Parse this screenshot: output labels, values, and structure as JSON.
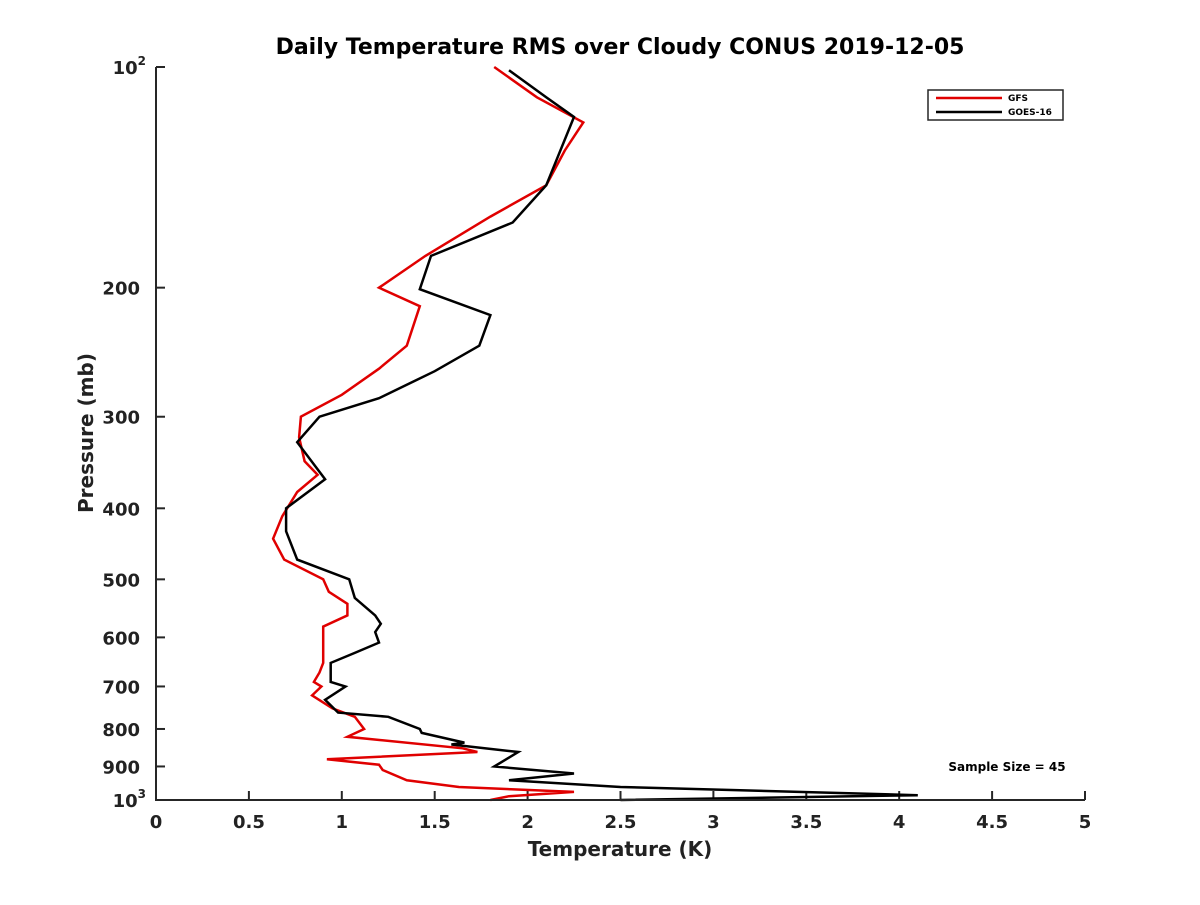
{
  "chart_data": {
    "type": "line",
    "title": "Daily Temperature RMS over Cloudy CONUS 2019-12-05",
    "xlabel": "Temperature (K)",
    "ylabel": "Pressure (mb)",
    "xlim": [
      0,
      5
    ],
    "ylim": [
      100,
      1000
    ],
    "y_scale": "log",
    "y_reversed": true,
    "grid": false,
    "legend_position": "top-right",
    "x_ticks": [
      "0",
      "0.5",
      "1",
      "1.5",
      "2",
      "2.5",
      "3",
      "3.5",
      "4",
      "4.5",
      "5"
    ],
    "x_tick_values": [
      0,
      0.5,
      1,
      1.5,
      2,
      2.5,
      3,
      3.5,
      4,
      4.5,
      5
    ],
    "y_ticks": [
      {
        "value": 100,
        "base": "10",
        "exp": "2"
      },
      {
        "value": 200,
        "label": "200"
      },
      {
        "value": 300,
        "label": "300"
      },
      {
        "value": 400,
        "label": "400"
      },
      {
        "value": 500,
        "label": "500"
      },
      {
        "value": 600,
        "label": "600"
      },
      {
        "value": 700,
        "label": "700"
      },
      {
        "value": 800,
        "label": "800"
      },
      {
        "value": 900,
        "label": "900"
      },
      {
        "value": 1000,
        "base": "10",
        "exp": "3"
      }
    ],
    "annotation": "Sample Size = 45",
    "series": [
      {
        "name": "GFS",
        "color": "#e00000",
        "points": [
          [
            1.82,
            100
          ],
          [
            2.05,
            110
          ],
          [
            2.3,
            119
          ],
          [
            2.2,
            130
          ],
          [
            2.1,
            145
          ],
          [
            1.8,
            160
          ],
          [
            1.45,
            181
          ],
          [
            1.2,
            200
          ],
          [
            1.42,
            212
          ],
          [
            1.35,
            240
          ],
          [
            1.2,
            258
          ],
          [
            1.0,
            280
          ],
          [
            0.78,
            300
          ],
          [
            0.77,
            320
          ],
          [
            0.8,
            345
          ],
          [
            0.87,
            360
          ],
          [
            0.76,
            380
          ],
          [
            0.68,
            410
          ],
          [
            0.63,
            440
          ],
          [
            0.69,
            470
          ],
          [
            0.9,
            500
          ],
          [
            0.93,
            520
          ],
          [
            1.03,
            540
          ],
          [
            1.03,
            560
          ],
          [
            0.9,
            580
          ],
          [
            0.9,
            620
          ],
          [
            0.9,
            650
          ],
          [
            0.88,
            670
          ],
          [
            0.85,
            690
          ],
          [
            0.89,
            700
          ],
          [
            0.84,
            720
          ],
          [
            0.95,
            750
          ],
          [
            1.07,
            770
          ],
          [
            1.12,
            800
          ],
          [
            1.03,
            820
          ],
          [
            1.65,
            850
          ],
          [
            1.73,
            860
          ],
          [
            0.92,
            880
          ],
          [
            1.2,
            895
          ],
          [
            1.22,
            910
          ],
          [
            1.35,
            940
          ],
          [
            1.63,
            960
          ],
          [
            2.25,
            975
          ],
          [
            1.9,
            988
          ],
          [
            1.8,
            1000
          ]
        ]
      },
      {
        "name": "GOES-16",
        "color": "#000000",
        "points": [
          [
            1.9,
            101
          ],
          [
            2.1,
            110
          ],
          [
            2.25,
            117
          ],
          [
            2.1,
            145
          ],
          [
            1.92,
            163
          ],
          [
            1.48,
            181
          ],
          [
            1.42,
            201
          ],
          [
            1.8,
            218
          ],
          [
            1.74,
            240
          ],
          [
            1.5,
            260
          ],
          [
            1.2,
            283
          ],
          [
            0.88,
            300
          ],
          [
            0.76,
            325
          ],
          [
            0.91,
            365
          ],
          [
            0.7,
            400
          ],
          [
            0.7,
            430
          ],
          [
            0.76,
            470
          ],
          [
            1.04,
            500
          ],
          [
            1.07,
            530
          ],
          [
            1.18,
            560
          ],
          [
            1.21,
            575
          ],
          [
            1.18,
            590
          ],
          [
            1.2,
            610
          ],
          [
            1.07,
            630
          ],
          [
            0.94,
            650
          ],
          [
            0.94,
            690
          ],
          [
            1.02,
            700
          ],
          [
            0.91,
            730
          ],
          [
            0.98,
            760
          ],
          [
            1.25,
            770
          ],
          [
            1.42,
            800
          ],
          [
            1.43,
            810
          ],
          [
            1.66,
            835
          ],
          [
            1.59,
            840
          ],
          [
            1.95,
            860
          ],
          [
            1.82,
            900
          ],
          [
            2.25,
            920
          ],
          [
            1.9,
            940
          ],
          [
            2.5,
            960
          ],
          [
            4.1,
            985
          ],
          [
            2.5,
            1000
          ]
        ]
      }
    ]
  }
}
